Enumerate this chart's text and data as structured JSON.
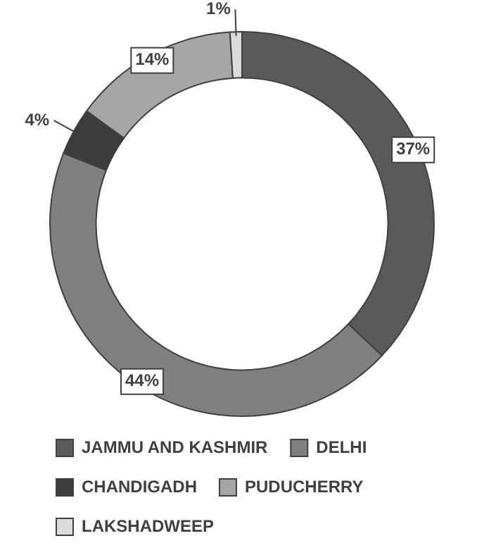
{
  "chart_data": {
    "type": "donut",
    "categories": [
      "JAMMU AND KASHMIR",
      "DELHI",
      "CHANDIGADH",
      "PUDUCHERRY",
      "LAKSHADWEEP"
    ],
    "values": [
      37,
      44,
      4,
      14,
      1
    ],
    "colors": [
      "#5a5a5a",
      "#808080",
      "#3c3c3c",
      "#a6a6a6",
      "#dcdcdc"
    ],
    "value_labels": [
      "37%",
      "44%",
      "4%",
      "14%",
      "1%"
    ],
    "legend": "bottom"
  }
}
